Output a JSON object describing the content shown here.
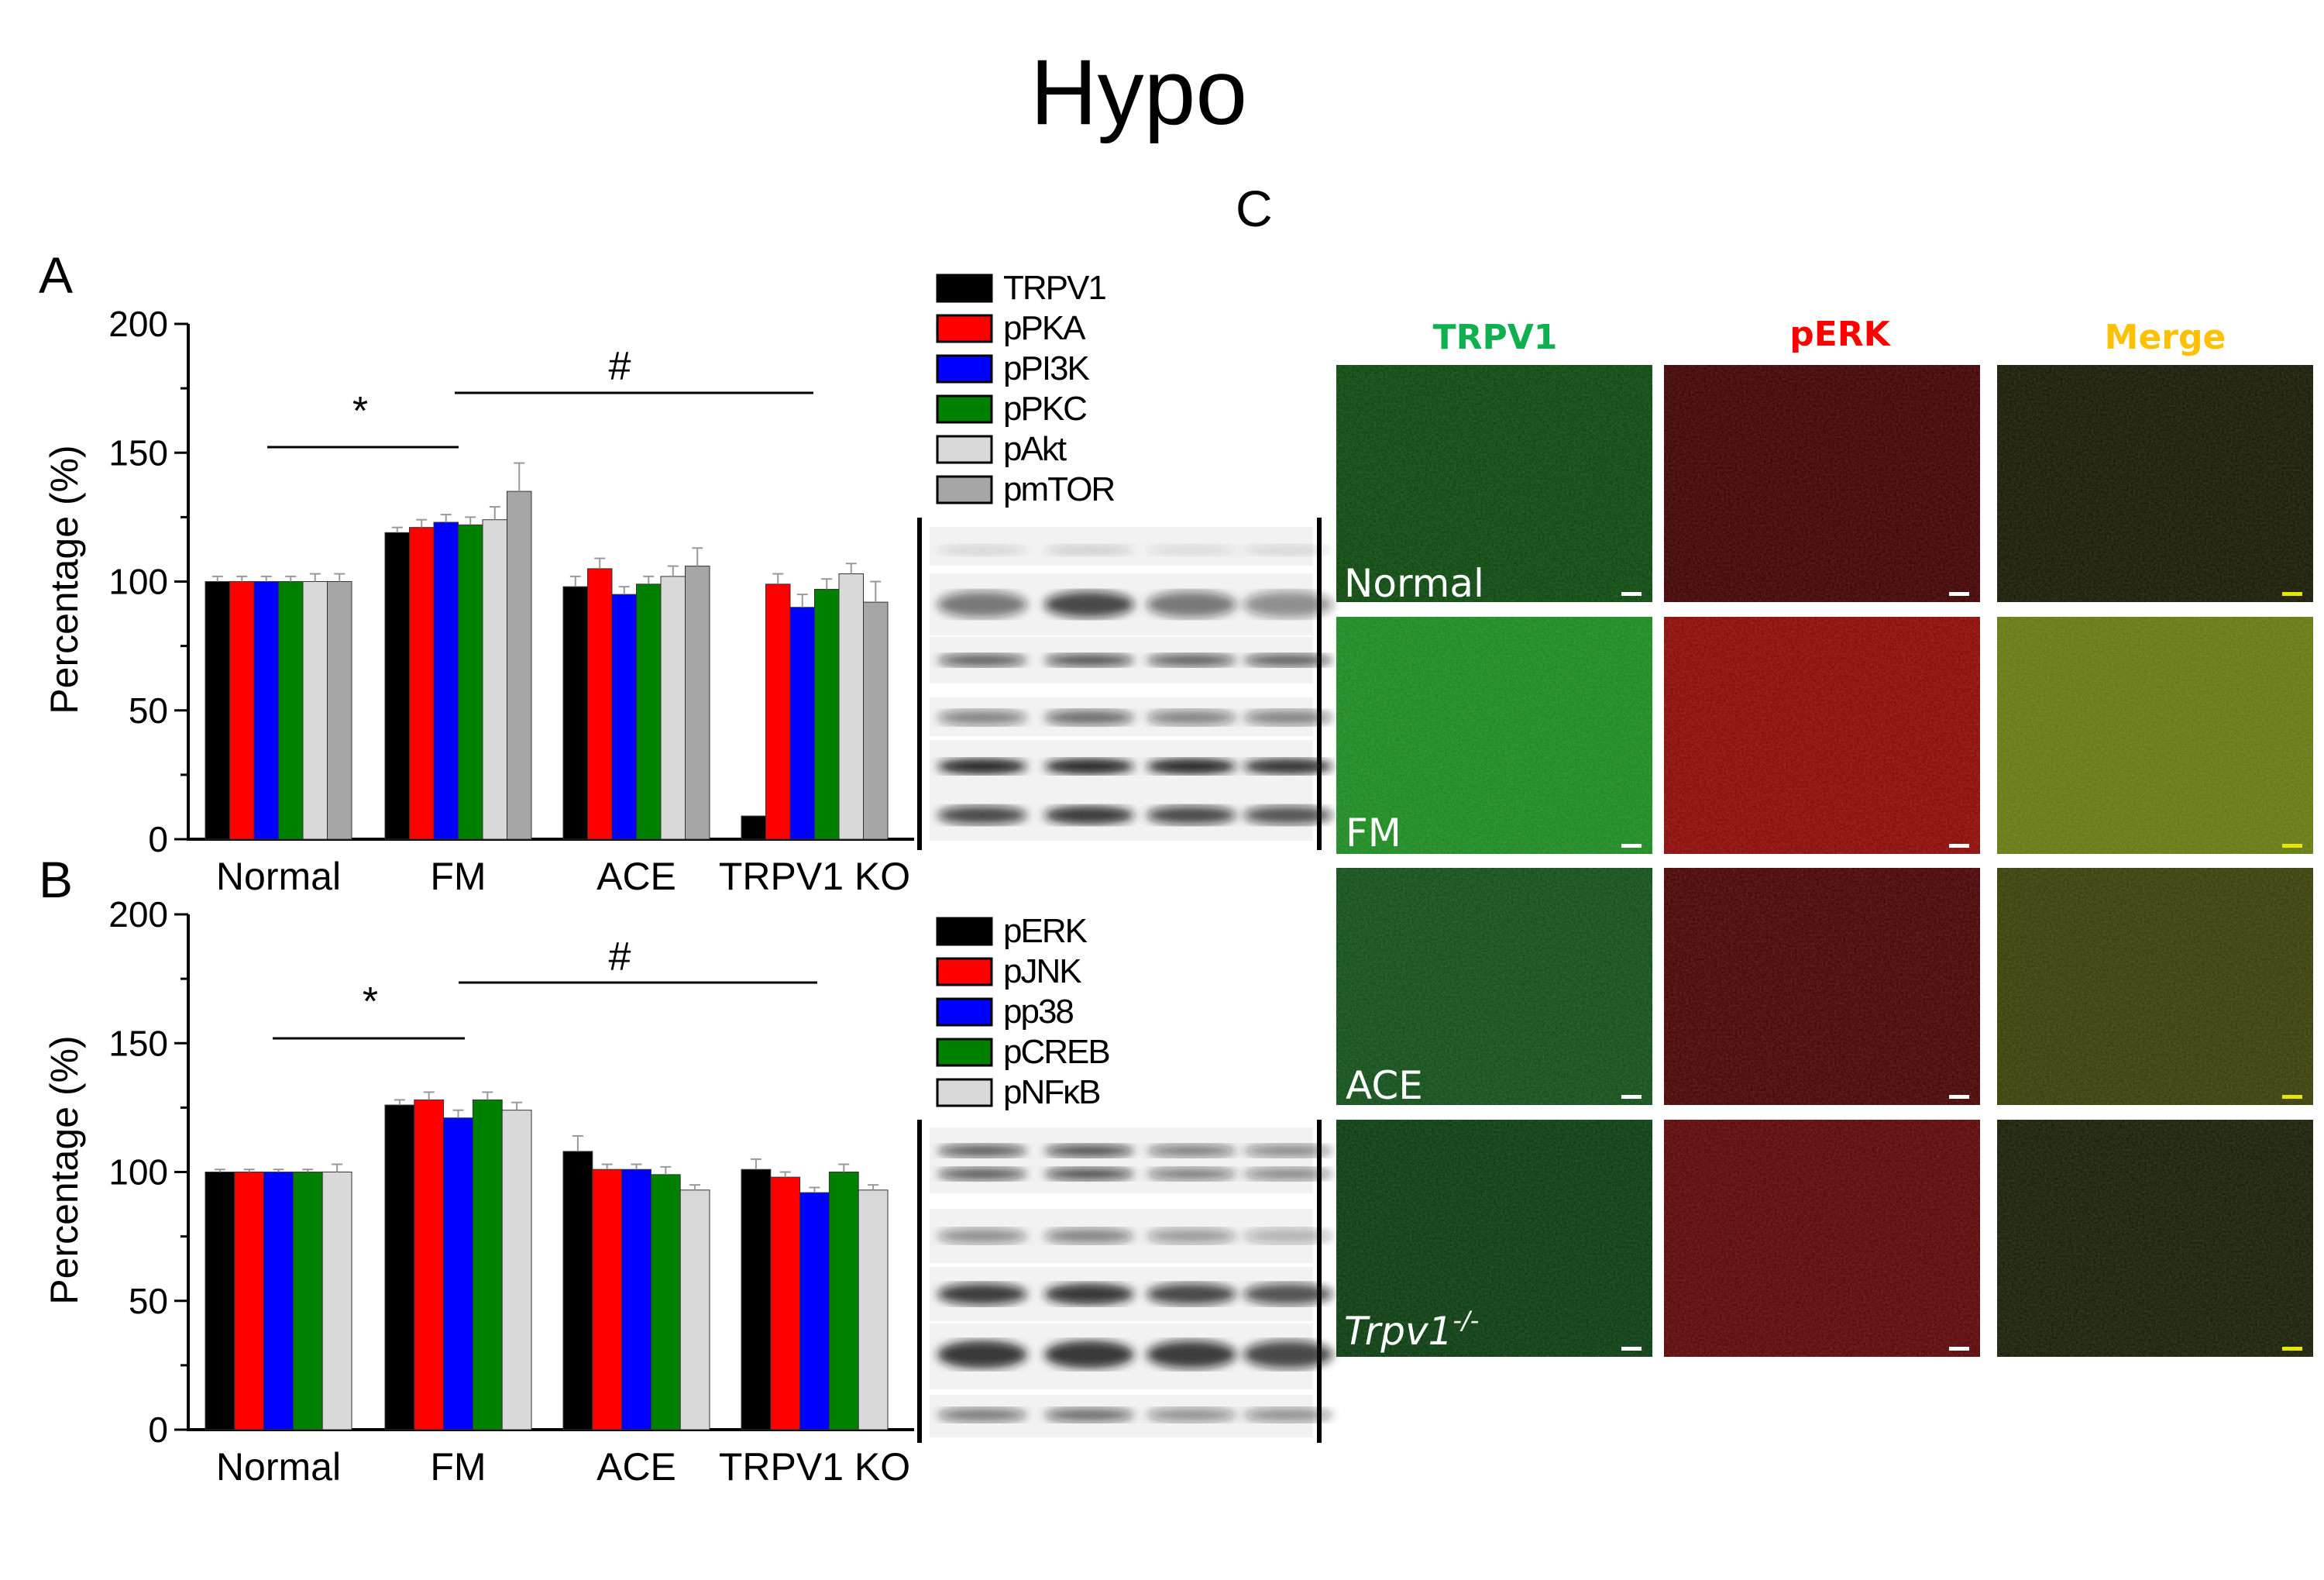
{
  "figure_title": "Hypo",
  "panel_labels": {
    "a": "A",
    "b": "B",
    "c": "C"
  },
  "colors": {
    "black": "#000000",
    "red": "#ff0000",
    "blue": "#0000ff",
    "green": "#008000",
    "light_gray": "#d9d9d9",
    "gray": "#a6a6a6",
    "trpv1_title": "#10b050",
    "perk_title": "#ff0000",
    "merge_title": "#ffc000"
  },
  "chart_data": [
    {
      "type": "bar",
      "panel": "A",
      "categories": [
        "Normal",
        "FM",
        "ACE",
        "TRPV1 KO"
      ],
      "ylabel": "Percentage (%)",
      "ylim": [
        0,
        200
      ],
      "yticks": [
        "0",
        "50",
        "100",
        "150",
        "200"
      ],
      "series": [
        {
          "name": "TRPV1",
          "color": "#000000",
          "values": [
            100,
            119,
            98,
            9
          ],
          "err": [
            2,
            2,
            4,
            0
          ]
        },
        {
          "name": "pPKA",
          "color": "#ff0000",
          "values": [
            100,
            121,
            105,
            99
          ],
          "err": [
            2,
            3,
            4,
            4
          ]
        },
        {
          "name": "pPI3K",
          "color": "#0000ff",
          "values": [
            100,
            123,
            95,
            90
          ],
          "err": [
            2,
            3,
            3,
            5
          ]
        },
        {
          "name": "pPKC",
          "color": "#008000",
          "values": [
            100,
            122,
            99,
            97
          ],
          "err": [
            2,
            3,
            3,
            4
          ]
        },
        {
          "name": "pAkt",
          "color": "#d9d9d9",
          "values": [
            100,
            124,
            102,
            103
          ],
          "err": [
            3,
            5,
            4,
            4
          ]
        },
        {
          "name": "pmTOR",
          "color": "#a6a6a6",
          "values": [
            100,
            135,
            106,
            92
          ],
          "err": [
            3,
            11,
            7,
            8
          ]
        }
      ],
      "annotations": {
        "star": "*",
        "hash": "#"
      }
    },
    {
      "type": "bar",
      "panel": "B",
      "categories": [
        "Normal",
        "FM",
        "ACE",
        "TRPV1 KO"
      ],
      "ylabel": "Percentage (%)",
      "ylim": [
        0,
        200
      ],
      "yticks": [
        "0",
        "50",
        "100",
        "150",
        "200"
      ],
      "series": [
        {
          "name": "pERK",
          "color": "#000000",
          "values": [
            100,
            126,
            108,
            101
          ],
          "err": [
            1,
            2,
            6,
            4
          ]
        },
        {
          "name": "pJNK",
          "color": "#ff0000",
          "values": [
            100,
            128,
            101,
            98
          ],
          "err": [
            1,
            3,
            2,
            2
          ]
        },
        {
          "name": "pp38",
          "color": "#0000ff",
          "values": [
            100,
            121,
            101,
            92
          ],
          "err": [
            1,
            3,
            2,
            2
          ]
        },
        {
          "name": "pCREB",
          "color": "#008000",
          "values": [
            100,
            128,
            99,
            100
          ],
          "err": [
            1,
            3,
            3,
            3
          ]
        },
        {
          "name": "pNFκB",
          "color": "#d9d9d9",
          "values": [
            100,
            124,
            93,
            93
          ],
          "err": [
            3,
            3,
            2,
            2
          ]
        }
      ],
      "annotations": {
        "star": "*",
        "hash": "#"
      }
    }
  ],
  "micrographs": {
    "column_titles": [
      "TRPV1",
      "pERK",
      "Merge"
    ],
    "row_labels": [
      "Normal",
      "FM",
      "ACE",
      "Trpv1"
    ],
    "ko_superscript": "-/-",
    "rows": [
      {
        "trpv1": "#0e4a10",
        "perk": "#420404",
        "merge": "#1a1c06"
      },
      {
        "trpv1": "#1f8a22",
        "perk": "#8c0c08",
        "merge": "#657a12"
      },
      {
        "trpv1": "#13501a",
        "perk": "#4a0606",
        "merge": "#3a4008"
      },
      {
        "trpv1": "#0d3e12",
        "perk": "#5c0808",
        "merge": "#1a2008"
      }
    ]
  }
}
